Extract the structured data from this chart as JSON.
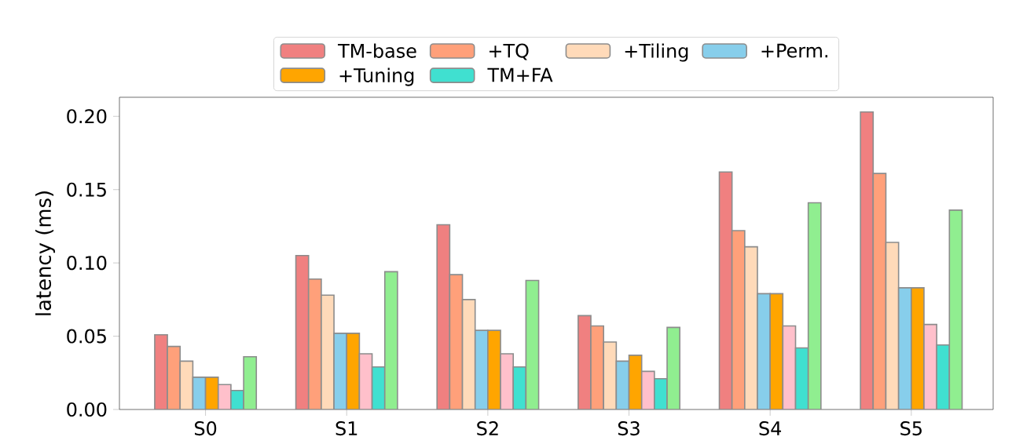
{
  "chart_data": {
    "type": "bar",
    "ylabel": "latency (ms)",
    "categories": [
      "S0",
      "S1",
      "S2",
      "S3",
      "S4",
      "S5"
    ],
    "series": [
      {
        "name": "TM-base",
        "color": "#f08080",
        "values": [
          0.051,
          0.105,
          0.126,
          0.064,
          0.162,
          0.203
        ]
      },
      {
        "name": "+TQ",
        "color": "#ffa07a",
        "values": [
          0.043,
          0.089,
          0.092,
          0.057,
          0.122,
          0.161
        ]
      },
      {
        "name": "+Tiling",
        "color": "#ffdab9",
        "values": [
          0.033,
          0.078,
          0.075,
          0.046,
          0.111,
          0.114
        ]
      },
      {
        "name": "+Perm.",
        "color": "#87ceeb",
        "values": [
          0.022,
          0.052,
          0.054,
          0.033,
          0.079,
          0.083
        ]
      },
      {
        "name": "+Tuning",
        "color": "#ffa500",
        "values": [
          0.022,
          0.052,
          0.054,
          0.037,
          0.079,
          0.083
        ]
      },
      {
        "color": "#ffc0cb",
        "values": [
          0.017,
          0.038,
          0.038,
          0.026,
          0.057,
          0.058
        ]
      },
      {
        "name": "TM+FA",
        "color": "#40e0d0",
        "values": [
          0.013,
          0.029,
          0.029,
          0.021,
          0.042,
          0.044
        ]
      },
      {
        "color": "#90ee90",
        "values": [
          0.036,
          0.094,
          0.088,
          0.056,
          0.141,
          0.136
        ]
      }
    ],
    "ylim": [
      0,
      0.213
    ],
    "yticks": [
      {
        "value": 0,
        "label": "0.00"
      },
      {
        "value": 0.05,
        "label": "0.05"
      },
      {
        "value": 0.1,
        "label": "0.10"
      },
      {
        "value": 0.15,
        "label": "0.15"
      },
      {
        "value": 0.2,
        "label": "0.20"
      }
    ],
    "legend": "top",
    "grid": false
  }
}
